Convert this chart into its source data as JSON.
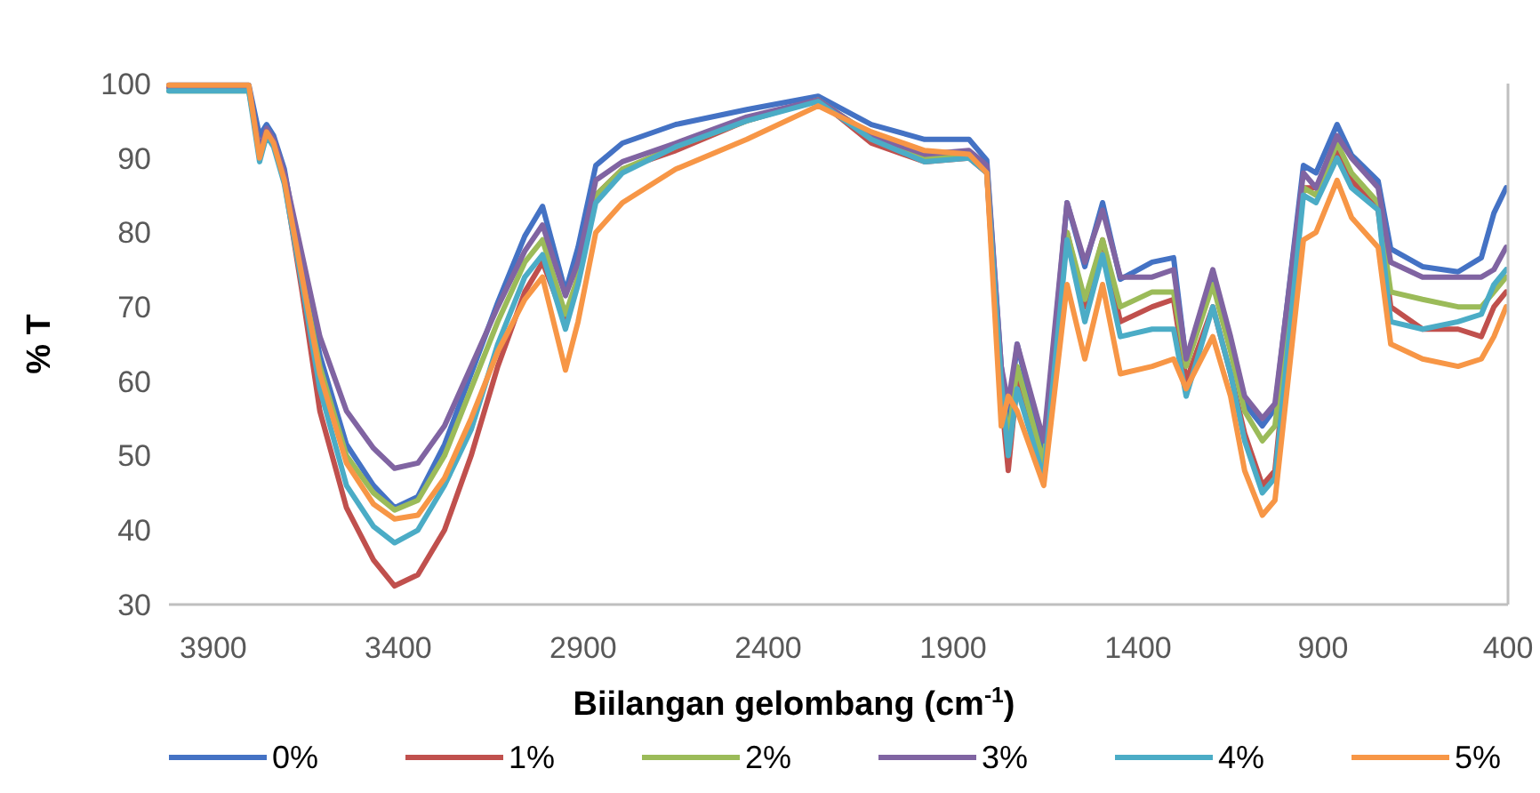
{
  "chart_data": {
    "type": "line",
    "xlabel": "Biilangan gelombang (cm$^{-1}$)",
    "ylabel": "% T",
    "x": [
      4020,
      3804,
      3775,
      3756,
      3737,
      3708,
      3660,
      3612,
      3540,
      3467,
      3410,
      3347,
      3275,
      3203,
      3131,
      3058,
      3010,
      2948,
      2914,
      2866,
      2794,
      2650,
      2458,
      2265,
      2121,
      1977,
      1857,
      1809,
      1770,
      1751,
      1727,
      1655,
      1592,
      1544,
      1496,
      1448,
      1362,
      1304,
      1270,
      1198,
      1150,
      1112,
      1064,
      1030,
      953,
      919,
      862,
      823,
      751,
      717,
      631,
      535,
      472,
      438,
      405
    ],
    "xlim": [
      4020,
      400
    ],
    "xticks": [
      3900,
      3400,
      2900,
      2400,
      1900,
      1400,
      900,
      400
    ],
    "ylim": [
      30,
      100
    ],
    "yticks": [
      30,
      40,
      50,
      60,
      70,
      80,
      90,
      100
    ],
    "grid": false,
    "legend": "bottom",
    "marker": "none",
    "line_style": "solid",
    "series": [
      {
        "name": "0%",
        "color": "#4472c4",
        "values": [
          99.8,
          99.8,
          93,
          94.5,
          93,
          88.5,
          75,
          63.5,
          51.5,
          46,
          43,
          44.5,
          51.5,
          61,
          70.6,
          79.5,
          83.5,
          72,
          78,
          89,
          92,
          94.5,
          96.5,
          98.3,
          94.5,
          92.5,
          92.5,
          89.7,
          62,
          54,
          65,
          50,
          84,
          75.4,
          84,
          73.7,
          76,
          76.6,
          62.7,
          74.2,
          65,
          57,
          54,
          56.3,
          89,
          88,
          94.5,
          90.4,
          86.9,
          77.8,
          75.4,
          74.7,
          76.6,
          82.6,
          86
        ]
      },
      {
        "name": "1%",
        "color": "#c0504d",
        "values": [
          99.5,
          99.5,
          91,
          93.5,
          92,
          87,
          72,
          56,
          43,
          36,
          32.5,
          34,
          40,
          50,
          62,
          72,
          76,
          68,
          74,
          85,
          88.5,
          91,
          95,
          97.8,
          92,
          89.5,
          90,
          88,
          58,
          48,
          60,
          47,
          80,
          70,
          79,
          68,
          70,
          71,
          60,
          70,
          61,
          53,
          46,
          48,
          86,
          86,
          91,
          87,
          83,
          70,
          67,
          67,
          66,
          70,
          72
        ]
      },
      {
        "name": "2%",
        "color": "#9bbb59",
        "values": [
          99,
          99,
          91,
          93.5,
          92,
          87.5,
          74,
          62,
          50,
          45,
          42.7,
          44,
          50,
          59,
          68,
          76,
          79,
          69,
          74,
          85,
          88.5,
          91.5,
          95,
          97.8,
          93,
          90,
          90.5,
          88.5,
          60,
          52,
          62,
          49,
          80,
          71,
          79,
          70,
          72,
          72,
          62,
          73,
          64,
          56,
          52,
          54,
          86,
          85,
          92,
          88,
          84,
          72,
          71,
          70,
          70,
          72,
          74
        ]
      },
      {
        "name": "3%",
        "color": "#8064a2",
        "values": [
          99.5,
          99.5,
          91,
          94,
          92.5,
          88,
          77,
          66,
          56,
          51,
          48.3,
          49,
          54,
          62,
          70,
          77.5,
          81,
          71.5,
          76,
          87,
          89.5,
          92,
          95.5,
          97.8,
          93,
          90.5,
          91,
          89,
          62,
          57,
          65,
          52,
          84,
          76,
          83,
          74,
          74,
          75,
          63,
          75,
          66,
          58,
          55,
          57,
          88,
          86,
          93,
          90,
          86,
          76,
          74,
          74,
          74,
          75,
          78
        ]
      },
      {
        "name": "4%",
        "color": "#4bacc6",
        "values": [
          99,
          99,
          89.5,
          93,
          91.5,
          86.5,
          73,
          59,
          46,
          40.5,
          38.3,
          40,
          46,
          53.5,
          65,
          74,
          77,
          67,
          73,
          84,
          88,
          91.5,
          95,
          97.6,
          92.5,
          89.5,
          90,
          88,
          60,
          50,
          59,
          47,
          79,
          68,
          77,
          66,
          67,
          67,
          58,
          70,
          61,
          52,
          45,
          47,
          85,
          84,
          90,
          86,
          83,
          68,
          67,
          68,
          69,
          73,
          75
        ]
      },
      {
        "name": "5%",
        "color": "#f79646",
        "values": [
          99.8,
          99.8,
          90,
          93.5,
          92,
          87,
          74,
          61,
          49,
          43.5,
          41.5,
          42,
          47,
          55,
          64,
          71,
          74,
          61.5,
          68,
          80,
          84,
          88.5,
          92.5,
          97,
          93.5,
          91,
          90.5,
          88,
          54,
          58,
          56,
          46,
          73,
          63,
          73,
          61,
          62,
          63,
          59,
          66,
          58,
          48,
          42,
          44,
          79,
          80,
          87,
          82,
          78,
          65,
          63,
          62,
          63,
          66,
          70
        ]
      }
    ]
  }
}
